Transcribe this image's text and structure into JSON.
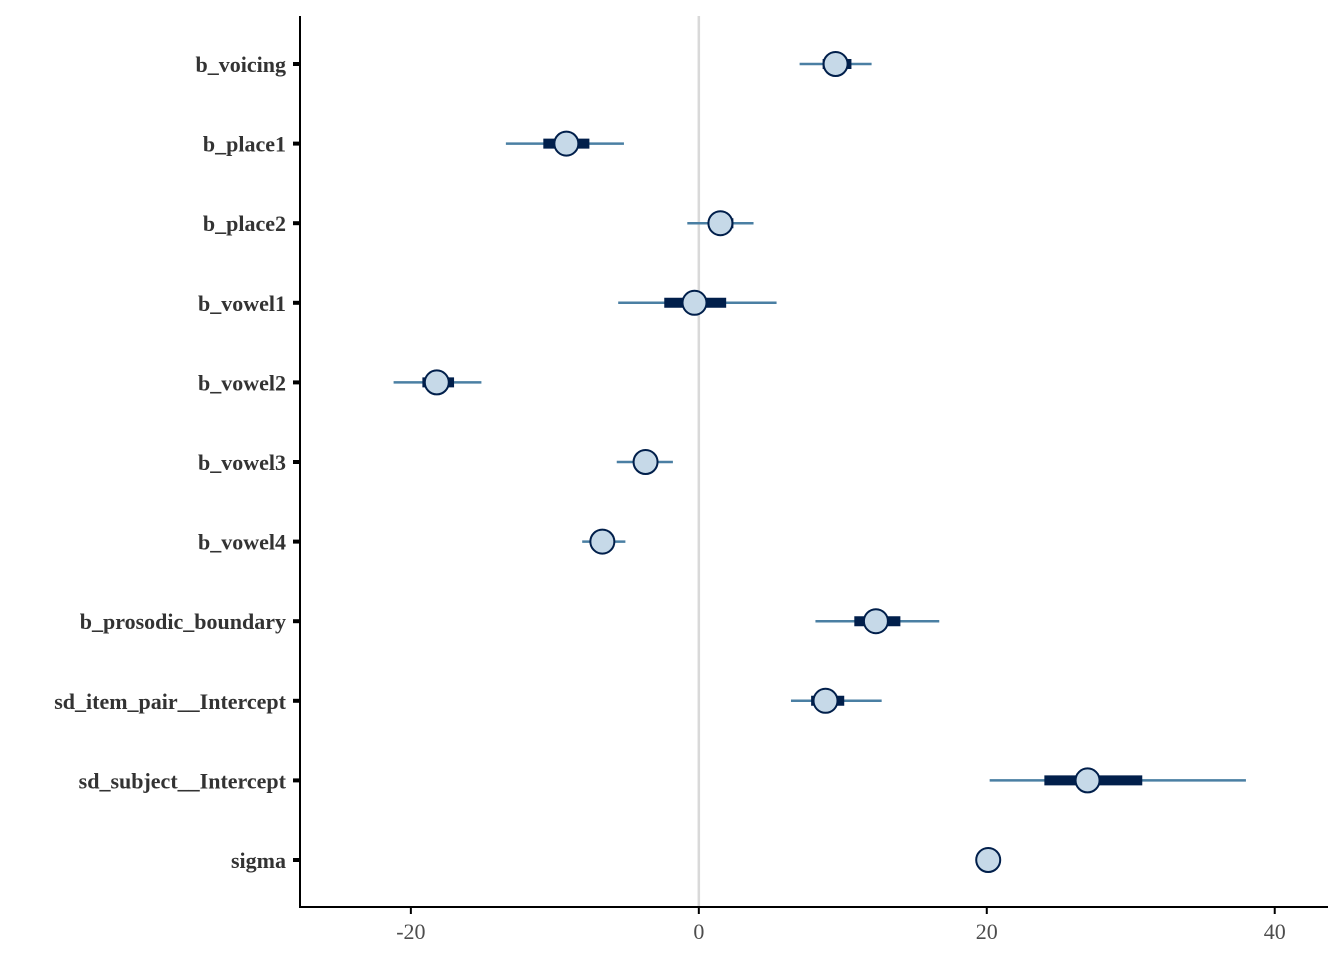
{
  "chart_data": {
    "type": "interval",
    "x_ticks": [
      -20,
      0,
      20,
      40
    ],
    "x_tick_labels": [
      "-20",
      "0",
      "20",
      "40"
    ],
    "xlim": [
      -27.7,
      43.7
    ],
    "reference_line_x": 0,
    "grid": false,
    "colors": {
      "outer_interval": "#4a7fa3",
      "inner_interval": "#011f4b",
      "point_fill": "#c6d9e8",
      "point_stroke": "#011f4b",
      "reference_line": "#d9d9d9",
      "axis": "#000000"
    },
    "parameters": [
      {
        "name": "b_voicing",
        "median": 9.5,
        "inner": [
          8.6,
          10.6
        ],
        "outer": [
          7.0,
          12.0
        ]
      },
      {
        "name": "b_place1",
        "median": -9.2,
        "inner": [
          -10.8,
          -7.6
        ],
        "outer": [
          -13.4,
          -5.2
        ]
      },
      {
        "name": "b_place2",
        "median": 1.5,
        "inner": [
          0.7,
          2.4
        ],
        "outer": [
          -0.8,
          3.8
        ]
      },
      {
        "name": "b_vowel1",
        "median": -0.3,
        "inner": [
          -2.4,
          1.9
        ],
        "outer": [
          -5.6,
          5.4
        ]
      },
      {
        "name": "b_vowel2",
        "median": -18.2,
        "inner": [
          -19.2,
          -17.0
        ],
        "outer": [
          -21.2,
          -15.1
        ]
      },
      {
        "name": "b_vowel3",
        "median": -3.7,
        "inner": [
          -4.4,
          -3.0
        ],
        "outer": [
          -5.7,
          -1.8
        ]
      },
      {
        "name": "b_vowel4",
        "median": -6.7,
        "inner": [
          -7.2,
          -6.2
        ],
        "outer": [
          -8.1,
          -5.1
        ]
      },
      {
        "name": "b_prosodic_boundary",
        "median": 12.3,
        "inner": [
          10.8,
          14.0
        ],
        "outer": [
          8.1,
          16.7
        ]
      },
      {
        "name": "sd_item_pair__Intercept",
        "median": 8.8,
        "inner": [
          7.8,
          10.1
        ],
        "outer": [
          6.4,
          12.7
        ]
      },
      {
        "name": "sd_subject__Intercept",
        "median": 27.0,
        "inner": [
          24.0,
          30.8
        ],
        "outer": [
          20.2,
          38.0
        ]
      },
      {
        "name": "sigma",
        "median": 20.1,
        "inner": [
          19.8,
          20.5
        ],
        "outer": [
          19.6,
          20.7
        ]
      }
    ]
  }
}
